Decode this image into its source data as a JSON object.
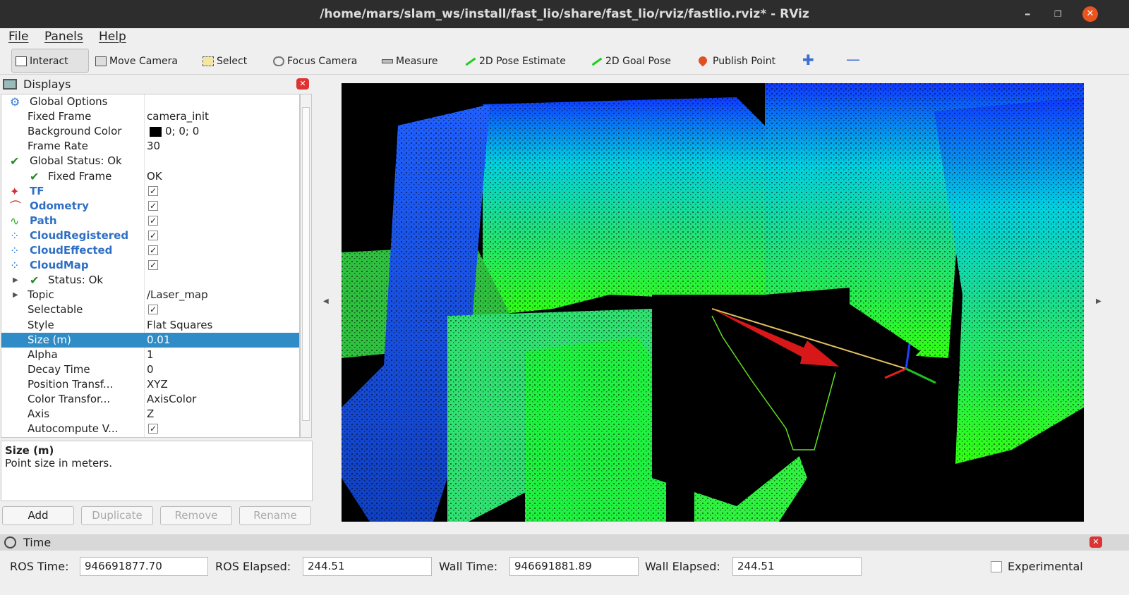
{
  "window": {
    "title": "/home/mars/slam_ws/install/fast_lio/share/fast_lio/rviz/fastlio.rviz* - RViz"
  },
  "menu": [
    "File",
    "Panels",
    "Help"
  ],
  "toolbar": [
    "Interact",
    "Move Camera",
    "Select",
    "Focus Camera",
    "Measure",
    "2D Pose Estimate",
    "2D Goal Pose",
    "Publish Point"
  ],
  "displays": {
    "title": "Displays",
    "rows": [
      {
        "name": "Global Options",
        "level": 0,
        "icon": "gear"
      },
      {
        "name": "Fixed Frame",
        "level": 1,
        "value": "camera_init"
      },
      {
        "name": "Background Color",
        "level": 1,
        "value": "0; 0; 0",
        "swatch": "#000000"
      },
      {
        "name": "Frame Rate",
        "level": 1,
        "value": "30"
      },
      {
        "name": "Global Status: Ok",
        "level": 0,
        "icon": "check"
      },
      {
        "name": "Fixed Frame",
        "level": 1,
        "icon": "check",
        "value": "OK"
      },
      {
        "name": "TF",
        "level": 0,
        "icon": "tf",
        "link": true,
        "checked": true
      },
      {
        "name": "Odometry",
        "level": 0,
        "icon": "odom",
        "link": true,
        "checked": true
      },
      {
        "name": "Path",
        "level": 0,
        "icon": "path",
        "link": true,
        "checked": true
      },
      {
        "name": "CloudRegistered",
        "level": 0,
        "icon": "cloud",
        "link": true,
        "checked": true
      },
      {
        "name": "CloudEffected",
        "level": 0,
        "icon": "cloud",
        "link": true,
        "checked": true
      },
      {
        "name": "CloudMap",
        "level": 0,
        "icon": "cloud",
        "link": true,
        "checked": true
      },
      {
        "name": "Status: Ok",
        "level": 1,
        "icon": "check",
        "expander": true
      },
      {
        "name": "Topic",
        "level": 1,
        "expander": true,
        "value": "/Laser_map"
      },
      {
        "name": "Selectable",
        "level": 1,
        "checked": true
      },
      {
        "name": "Style",
        "level": 1,
        "value": "Flat Squares"
      },
      {
        "name": "Size (m)",
        "level": 1,
        "value": "0.01",
        "selected": true
      },
      {
        "name": "Alpha",
        "level": 1,
        "value": "1"
      },
      {
        "name": "Decay Time",
        "level": 1,
        "value": "0"
      },
      {
        "name": "Position Transf...",
        "level": 1,
        "value": "XYZ"
      },
      {
        "name": "Color Transfor...",
        "level": 1,
        "value": "AxisColor"
      },
      {
        "name": "Axis",
        "level": 1,
        "value": "Z"
      },
      {
        "name": "Autocompute V...",
        "level": 1,
        "checked": true
      }
    ]
  },
  "description": {
    "title": "Size (m)",
    "text": "Point size in meters."
  },
  "buttons": [
    {
      "label": "Add",
      "enabled": true
    },
    {
      "label": "Duplicate",
      "enabled": false
    },
    {
      "label": "Remove",
      "enabled": false
    },
    {
      "label": "Rename",
      "enabled": false
    }
  ],
  "time": {
    "title": "Time",
    "fields": [
      {
        "label": "ROS Time:",
        "value": "946691877.70"
      },
      {
        "label": "ROS Elapsed:",
        "value": "244.51"
      },
      {
        "label": "Wall Time:",
        "value": "946691881.89"
      },
      {
        "label": "Wall Elapsed:",
        "value": "244.51"
      }
    ],
    "experimental": "Experimental"
  }
}
